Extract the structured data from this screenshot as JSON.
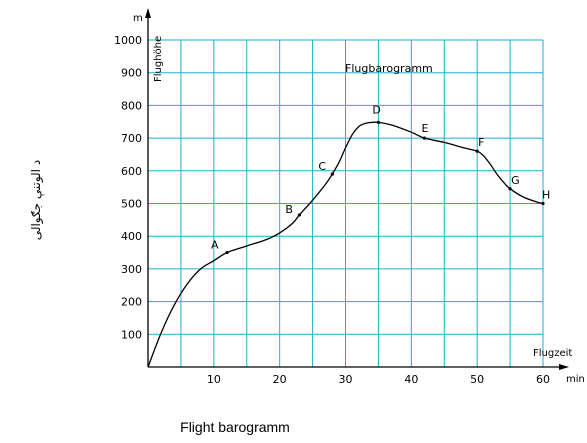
{
  "chart_data": {
    "type": "line",
    "title": "Flugbarogramm",
    "xlabel": "Flugzeit",
    "x_unit": "min",
    "ylabel": "Flughöhe",
    "y_unit": "m",
    "side_label": "د الوتنې جګوالی",
    "caption": "Flight barogramm",
    "xlim": [
      0,
      60
    ],
    "ylim": [
      0,
      1000
    ],
    "x_ticks": [
      10,
      20,
      30,
      40,
      50,
      60
    ],
    "y_ticks": [
      100,
      200,
      300,
      400,
      500,
      600,
      700,
      800,
      900,
      1000
    ],
    "grid": true,
    "series": [
      {
        "color": "#000000",
        "x": [
          0,
          2,
          4,
          6,
          8,
          10,
          12,
          15,
          18,
          20,
          22,
          23,
          25,
          27,
          28,
          29,
          30,
          31,
          32,
          33,
          34,
          35,
          37,
          40,
          42,
          45,
          48,
          50,
          51,
          52,
          53,
          54,
          55,
          57,
          59,
          60
        ],
        "y": [
          0,
          105,
          190,
          255,
          300,
          325,
          350,
          370,
          390,
          410,
          440,
          465,
          510,
          560,
          590,
          625,
          670,
          710,
          735,
          745,
          748,
          748,
          740,
          718,
          700,
          687,
          670,
          660,
          645,
          620,
          590,
          565,
          545,
          520,
          505,
          500
        ]
      }
    ],
    "annotations": [
      {
        "label": "A",
        "x": 12,
        "y": 350
      },
      {
        "label": "B",
        "x": 23,
        "y": 465
      },
      {
        "label": "C",
        "x": 28,
        "y": 590
      },
      {
        "label": "D",
        "x": 35,
        "y": 748
      },
      {
        "label": "E",
        "x": 42,
        "y": 700
      },
      {
        "label": "F",
        "x": 50,
        "y": 660
      },
      {
        "label": "G",
        "x": 55,
        "y": 545
      },
      {
        "label": "H",
        "x": 60,
        "y": 500
      }
    ],
    "colors": {
      "grid": "#17b3c8",
      "line": "#000000",
      "axis": "#000000"
    }
  }
}
